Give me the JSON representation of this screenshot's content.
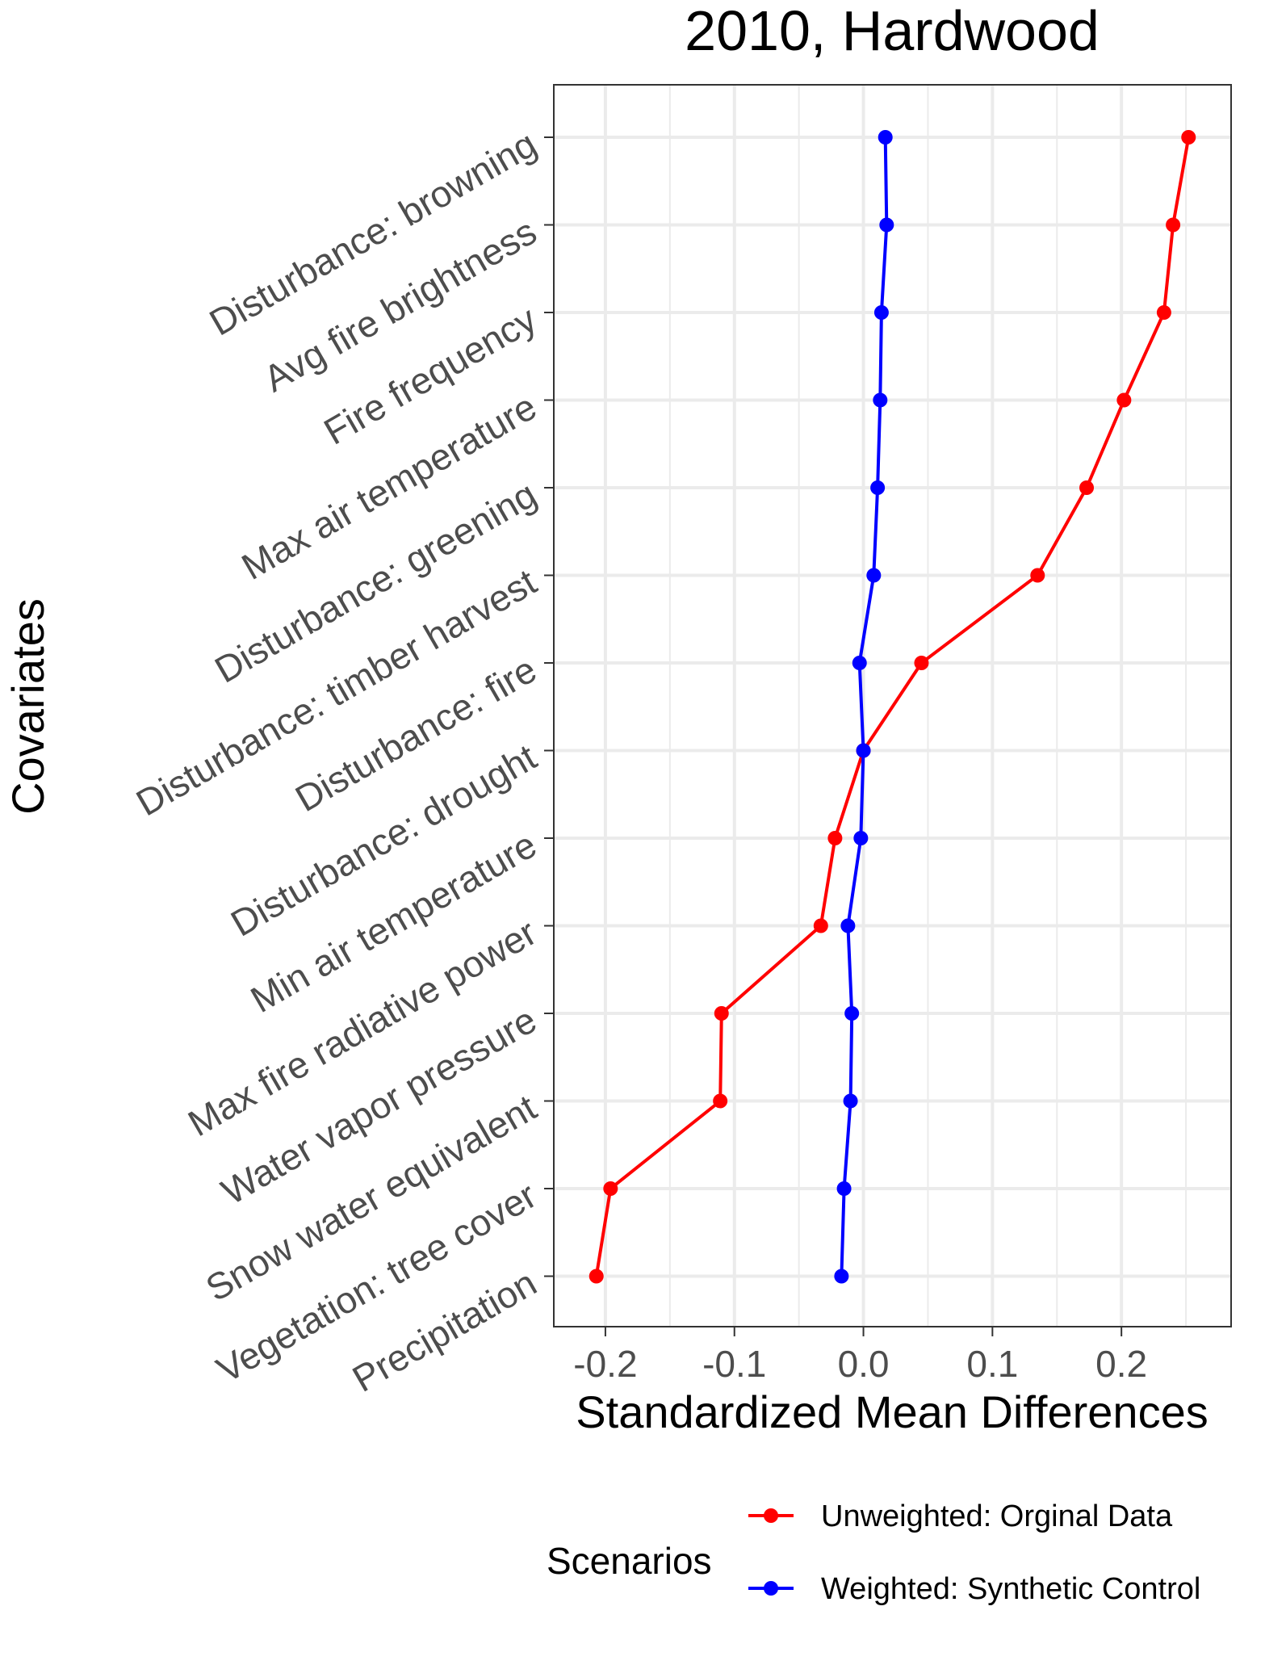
{
  "chart_data": {
    "type": "line",
    "title": "2010, Hardwood",
    "xlabel": "Standardized Mean Differences",
    "ylabel": "Covariates",
    "xlim": [
      -0.24,
      0.285
    ],
    "x_ticks": [
      -0.2,
      -0.1,
      0.0,
      0.1,
      0.2
    ],
    "x_tick_labels": [
      "-0.2",
      "-0.1",
      "0.0",
      "0.1",
      "0.2"
    ],
    "grid": true,
    "legend_position": "bottom",
    "legend_title": "Scenarios",
    "categories": [
      "Disturbance: browning",
      "Avg fire brightness",
      "Fire frequency",
      "Max air temperature",
      "Disturbance: greening",
      "Disturbance: timber harvest",
      "Disturbance: fire",
      "Disturbance: drought",
      "Min air temperature",
      "Max fire radiative power",
      "Water vapor pressure",
      "Snow water equivalent",
      "Vegetation: tree cover",
      "Precipitation"
    ],
    "series": [
      {
        "name": "Unweighted: Orginal Data",
        "color": "#ff0000",
        "values": [
          0.252,
          0.24,
          0.233,
          0.202,
          0.173,
          0.135,
          0.045,
          0.0,
          -0.022,
          -0.033,
          -0.11,
          -0.111,
          -0.196,
          -0.207
        ]
      },
      {
        "name": "Weighted: Synthetic Control",
        "color": "#0000ff",
        "values": [
          0.017,
          0.018,
          0.014,
          0.013,
          0.011,
          0.008,
          -0.003,
          0.0,
          -0.002,
          -0.012,
          -0.009,
          -0.01,
          -0.015,
          -0.017
        ]
      }
    ]
  }
}
